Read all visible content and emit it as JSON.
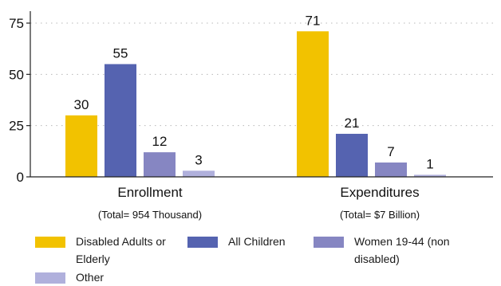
{
  "chart_data": {
    "type": "bar",
    "categories": [
      "Enrollment",
      "Expenditures"
    ],
    "category_subtitles": [
      "(Total= 954 Thousand)",
      "(Total= $7 Billion)"
    ],
    "series": [
      {
        "name": "Disabled Adults or Elderly",
        "color": "#f2c200",
        "values": [
          30,
          71
        ]
      },
      {
        "name": "All Children",
        "color": "#5563b0",
        "values": [
          55,
          21
        ]
      },
      {
        "name": "Women 19-44 (non disabled)",
        "color": "#8686c2",
        "values": [
          12,
          7
        ]
      },
      {
        "name": "Other",
        "color": "#b0b0dc",
        "values": [
          3,
          1
        ]
      }
    ],
    "title": "",
    "xlabel": "",
    "ylabel": "",
    "ylim": [
      0,
      75
    ],
    "yticks": [
      0,
      25,
      50,
      75
    ],
    "grid": "horizontal dotted",
    "legend_placement": "bottom"
  }
}
